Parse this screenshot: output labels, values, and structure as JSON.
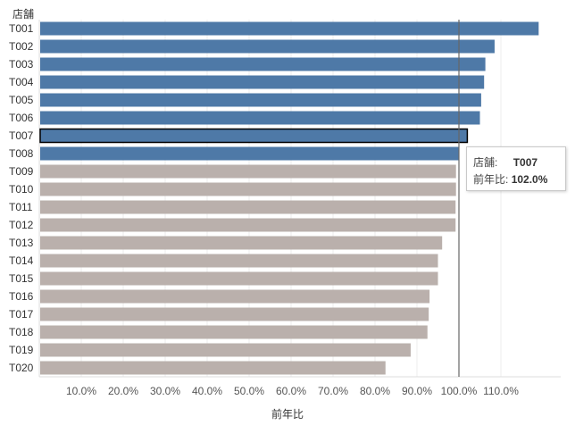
{
  "header": {
    "dimension_label": "店舗"
  },
  "tooltip": {
    "store_label": "店舗:",
    "store_value": "T007",
    "ratio_label": "前年比:",
    "ratio_value": "102.0%"
  },
  "colors": {
    "above_reference": "#4e79a7",
    "below_reference": "#bab0ac",
    "reference_line": "#666666",
    "gridline": "#ececec",
    "selected_outline": "#000000"
  },
  "chart_data": {
    "type": "bar",
    "orientation": "horizontal",
    "categories": [
      "T001",
      "T002",
      "T003",
      "T004",
      "T005",
      "T006",
      "T007",
      "T008",
      "T009",
      "T010",
      "T011",
      "T012",
      "T013",
      "T014",
      "T015",
      "T016",
      "T017",
      "T018",
      "T019",
      "T020"
    ],
    "values": [
      119.0,
      108.5,
      106.3,
      106.0,
      105.3,
      105.0,
      102.0,
      100.0,
      99.3,
      99.3,
      99.2,
      99.2,
      96.0,
      95.0,
      95.0,
      93.0,
      92.8,
      92.5,
      88.5,
      82.5
    ],
    "xlabel": "前年比",
    "ylabel": "店舗",
    "xlim": [
      0,
      124
    ],
    "x_ticks": [
      10,
      20,
      30,
      40,
      50,
      60,
      70,
      80,
      90,
      100,
      110
    ],
    "x_tick_labels": [
      "10.0%",
      "20.0%",
      "30.0%",
      "40.0%",
      "50.0%",
      "60.0%",
      "70.0%",
      "80.0%",
      "90.0%",
      "100.0%",
      "110.0%"
    ],
    "reference_line": 100,
    "selected_category": "T007",
    "grid": "vertical"
  }
}
